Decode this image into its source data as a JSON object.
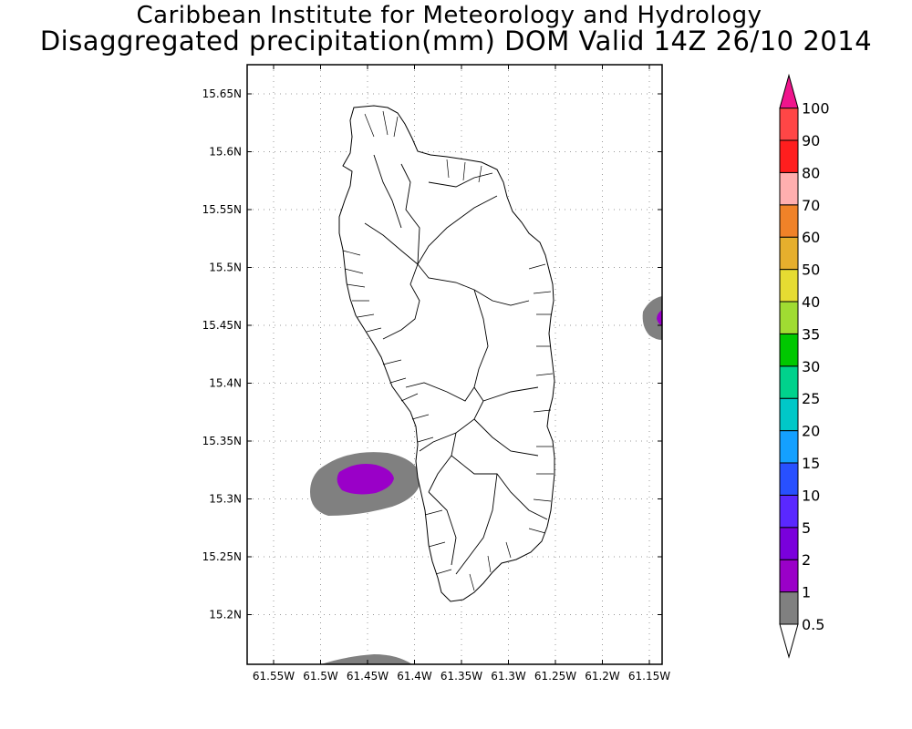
{
  "title": "Caribbean Institute for Meteorology and Hydrology",
  "subtitle": "Disaggregated precipitation(mm) DOM Valid 14Z 26/10 2014",
  "map": {
    "lat_ticks": [
      "15.65N",
      "15.6N",
      "15.55N",
      "15.5N",
      "15.45N",
      "15.4N",
      "15.35N",
      "15.3N",
      "15.25N",
      "15.2N"
    ],
    "lon_ticks": [
      "61.55W",
      "61.5W",
      "61.45W",
      "61.4W",
      "61.35W",
      "61.3W",
      "61.25W",
      "61.2W",
      "61.15W"
    ],
    "grid": true,
    "region": "Dominica"
  },
  "colorbar": {
    "levels": [
      "0.5",
      "1",
      "2",
      "5",
      "10",
      "15",
      "20",
      "25",
      "30",
      "35",
      "40",
      "50",
      "60",
      "70",
      "80",
      "90",
      "100"
    ],
    "colors": [
      "#808080",
      "#9a00c8",
      "#7a00dc",
      "#5a28ff",
      "#2850ff",
      "#14a0ff",
      "#00c8c8",
      "#00d28c",
      "#00c800",
      "#a0dc32",
      "#e6dc32",
      "#e6af2d",
      "#f08228",
      "#ffafaf",
      "#ff1e1e",
      "#ff4646",
      "#f0148c"
    ],
    "under_color": "#ffffff",
    "over_color": "#f0148c"
  }
}
